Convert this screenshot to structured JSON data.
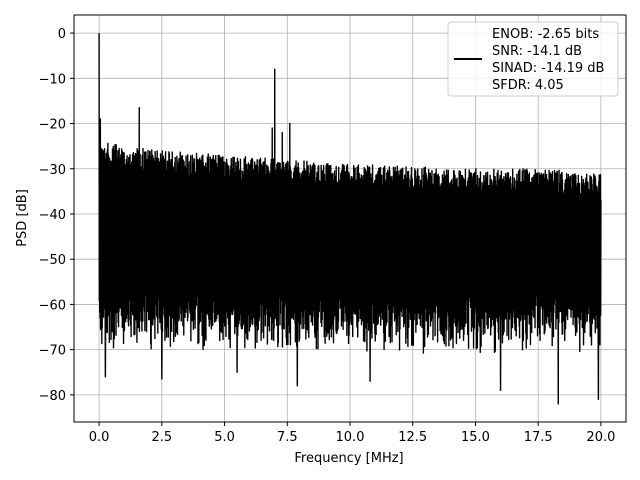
{
  "chart_data": {
    "type": "line",
    "title": "",
    "xlabel": "Frequency [MHz]",
    "ylabel": "PSD [dB]",
    "xlim": [
      -1.0,
      21.0
    ],
    "ylim": [
      -86,
      4
    ],
    "xticks": [
      0.0,
      2.5,
      5.0,
      7.5,
      10.0,
      12.5,
      15.0,
      17.5,
      20.0
    ],
    "xtick_labels": [
      "0.0",
      "2.5",
      "5.0",
      "7.5",
      "10.0",
      "12.5",
      "15.0",
      "17.5",
      "20.0"
    ],
    "yticks": [
      0,
      -10,
      -20,
      -30,
      -40,
      -50,
      -60,
      -70,
      -80
    ],
    "ytick_labels": [
      "0",
      "−10",
      "−20",
      "−30",
      "−40",
      "−50",
      "−60",
      "−70",
      "−80"
    ],
    "grid": true,
    "legend_position": "top-right",
    "series": [
      {
        "color": "#000000",
        "x_range": [
          0.0,
          20.0
        ],
        "envelope": {
          "x": [
            0.0,
            1.0,
            2.5,
            5.0,
            7.5,
            10.0,
            12.5,
            15.0,
            17.5,
            20.0
          ],
          "upper": [
            -24,
            -25,
            -26,
            -27,
            -28,
            -29,
            -29.5,
            -30,
            -30,
            -31
          ],
          "lower": [
            -63,
            -63,
            -63,
            -63,
            -63,
            -63,
            -63,
            -63,
            -63,
            -63
          ]
        },
        "peaks": [
          {
            "x": 0.0,
            "y": 0
          },
          {
            "x": 0.05,
            "y": -19
          },
          {
            "x": 1.6,
            "y": -16.5
          },
          {
            "x": 6.9,
            "y": -21
          },
          {
            "x": 7.0,
            "y": -8
          },
          {
            "x": 7.3,
            "y": -22
          },
          {
            "x": 7.6,
            "y": -20
          }
        ],
        "dips": [
          {
            "x": 0.25,
            "y": -76
          },
          {
            "x": 2.5,
            "y": -76.5
          },
          {
            "x": 5.5,
            "y": -75
          },
          {
            "x": 7.9,
            "y": -78
          },
          {
            "x": 10.8,
            "y": -77
          },
          {
            "x": 16.0,
            "y": -79
          },
          {
            "x": 18.3,
            "y": -82
          },
          {
            "x": 19.9,
            "y": -81
          }
        ]
      }
    ],
    "legend": {
      "entries": [
        "ENOB: -2.65 bits",
        "SNR: -14.1 dB",
        "SINAD: -14.19 dB",
        "SFDR: 4.05"
      ],
      "line_color": "#000000"
    }
  }
}
